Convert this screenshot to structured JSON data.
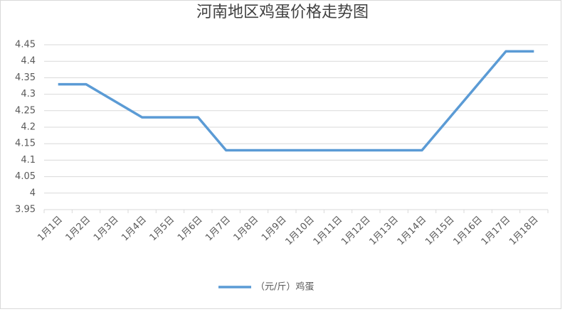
{
  "chart_data": {
    "type": "line",
    "title": "河南地区鸡蛋价格走势图",
    "categories": [
      "1月1日",
      "1月2日",
      "1月3日",
      "1月4日",
      "1月5日",
      "1月6日",
      "1月7日",
      "1月8日",
      "1月9日",
      "1月10日",
      "1月11日",
      "1月12日",
      "1月13日",
      "1月14日",
      "1月15日",
      "1月16日",
      "1月17日",
      "1月18日"
    ],
    "series": [
      {
        "name": "（元/斤）鸡蛋",
        "color": "#5b9bd5",
        "values": [
          4.33,
          4.33,
          4.28,
          4.23,
          4.23,
          4.23,
          4.13,
          4.13,
          4.13,
          4.13,
          4.13,
          4.13,
          4.13,
          4.13,
          4.23,
          4.33,
          4.43,
          4.43
        ]
      }
    ],
    "ylim": [
      3.95,
      4.45
    ],
    "yticks": [
      3.95,
      4,
      4.05,
      4.1,
      4.15,
      4.2,
      4.25,
      4.3,
      4.35,
      4.4,
      4.45
    ],
    "grid": true,
    "legend": "bottom"
  }
}
